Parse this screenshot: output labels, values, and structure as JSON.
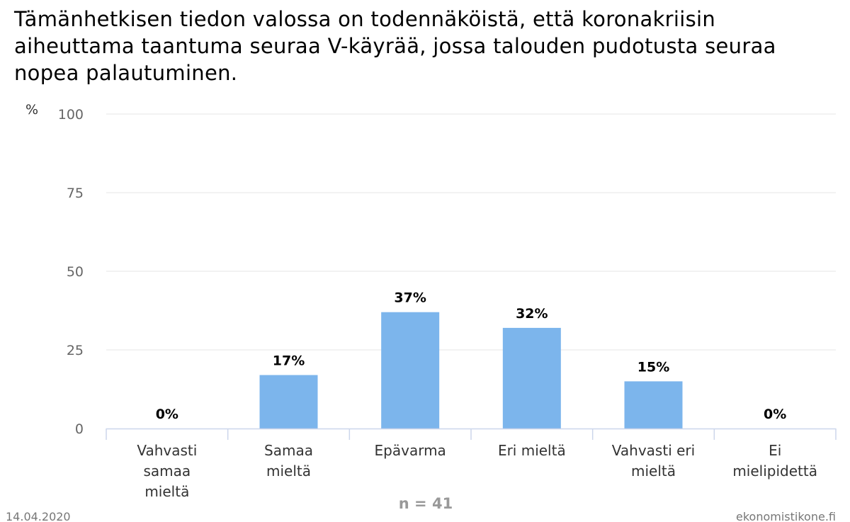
{
  "title": "Tämänhetkisen tiedon valossa on todennäköistä, että koronakriisin aiheuttama taantuma seuraa V-käyrää, jossa talouden pudotusta seuraa nopea palautuminen.",
  "sample_size": "n = 41",
  "date": "14.04.2020",
  "source": "ekonomistikone.fi",
  "colors": {
    "bar": "#7cb5ec",
    "grid": "#e6e6e6",
    "axis": "#ccd6eb"
  },
  "chart_data": {
    "type": "bar",
    "categories": [
      [
        "Vahvasti",
        "samaa",
        "mieltä"
      ],
      [
        "Samaa",
        "mieltä"
      ],
      [
        "Epävarma"
      ],
      [
        "Eri mieltä"
      ],
      [
        "Vahvasti eri",
        "mieltä"
      ],
      [
        "Ei",
        "mielipidettä"
      ]
    ],
    "values": [
      0,
      17,
      37,
      32,
      15,
      0
    ],
    "data_labels": [
      "0%",
      "17%",
      "37%",
      "32%",
      "15%",
      "0%"
    ],
    "ylabel": "%",
    "ylim": [
      0,
      100
    ],
    "yticks": [
      0,
      25,
      50,
      75,
      100
    ],
    "grid": true
  }
}
